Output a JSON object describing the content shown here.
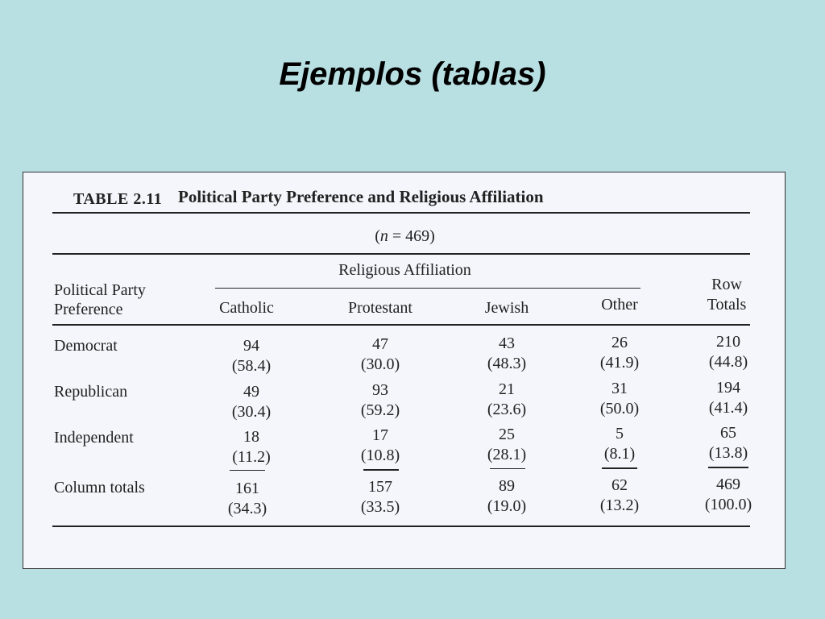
{
  "slide": {
    "title": "Ejemplos (tablas)"
  },
  "table": {
    "label": "TABLE 2.11",
    "caption": "Political Party Preference and Religious Affiliation",
    "n_line": "(n = 469)",
    "group_header": "Religious Affiliation",
    "row_header_line1": "Political Party",
    "row_header_line2": "Preference",
    "columns": [
      "Catholic",
      "Protestant",
      "Jewish",
      "Other"
    ],
    "row_totals_line1": "Row",
    "row_totals_line2": "Totals",
    "rows": [
      {
        "label": "Democrat",
        "cells": [
          {
            "count": "94",
            "pct": "(58.4)"
          },
          {
            "count": "47",
            "pct": "(30.0)"
          },
          {
            "count": "43",
            "pct": "(48.3)"
          },
          {
            "count": "26",
            "pct": "(41.9)"
          },
          {
            "count": "210",
            "pct": "(44.8)"
          }
        ]
      },
      {
        "label": "Republican",
        "cells": [
          {
            "count": "49",
            "pct": "(30.4)"
          },
          {
            "count": "93",
            "pct": "(59.2)"
          },
          {
            "count": "21",
            "pct": "(23.6)"
          },
          {
            "count": "31",
            "pct": "(50.0)"
          },
          {
            "count": "194",
            "pct": "(41.4)"
          }
        ]
      },
      {
        "label": "Independent",
        "cells": [
          {
            "count": "18",
            "pct": "(11.2)"
          },
          {
            "count": "17",
            "pct": "(10.8)"
          },
          {
            "count": "25",
            "pct": "(28.1)"
          },
          {
            "count": "5",
            "pct": "(8.1)"
          },
          {
            "count": "65",
            "pct": "(13.8)"
          }
        ]
      },
      {
        "label": "Column totals",
        "cells": [
          {
            "count": "161",
            "pct": "(34.3)"
          },
          {
            "count": "157",
            "pct": "(33.5)"
          },
          {
            "count": "89",
            "pct": "(19.0)"
          },
          {
            "count": "62",
            "pct": "(13.2)"
          },
          {
            "count": "469",
            "pct": "(100.0)"
          }
        ]
      }
    ]
  }
}
